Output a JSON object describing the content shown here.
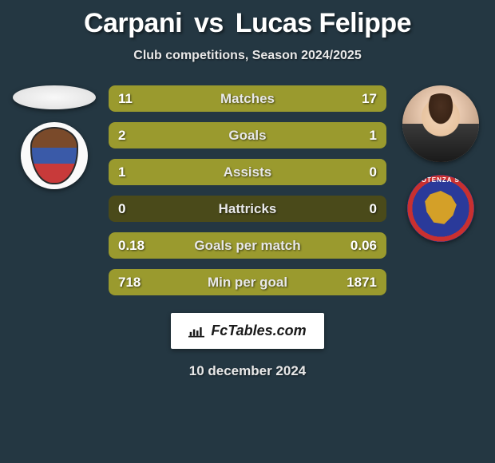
{
  "title": {
    "player1": "Carpani",
    "vs": "vs",
    "player2": "Lucas Felippe"
  },
  "subtitle": "Club competitions, Season 2024/2025",
  "stats": [
    {
      "label": "Matches",
      "left_val": "11",
      "right_val": "17",
      "left_pct": 39,
      "right_pct": 61
    },
    {
      "label": "Goals",
      "left_val": "2",
      "right_val": "1",
      "left_pct": 67,
      "right_pct": 33
    },
    {
      "label": "Assists",
      "left_val": "1",
      "right_val": "0",
      "left_pct": 100,
      "right_pct": 0
    },
    {
      "label": "Hattricks",
      "left_val": "0",
      "right_val": "0",
      "left_pct": 0,
      "right_pct": 0
    },
    {
      "label": "Goals per match",
      "left_val": "0.18",
      "right_val": "0.06",
      "left_pct": 75,
      "right_pct": 25
    },
    {
      "label": "Min per goal",
      "left_val": "718",
      "right_val": "1871",
      "left_pct": 100,
      "right_pct": 100
    }
  ],
  "colors": {
    "background": "#243742",
    "bar_full": "#9a9a2e",
    "bar_empty": "#4a4a1a",
    "text": "#ffffff",
    "subtle_text": "#e8e8e8"
  },
  "footer": {
    "site": "FcTables.com",
    "date": "10 december 2024"
  },
  "badges": {
    "left_team": "Calcio Catania",
    "right_team": "Potenza SC"
  }
}
